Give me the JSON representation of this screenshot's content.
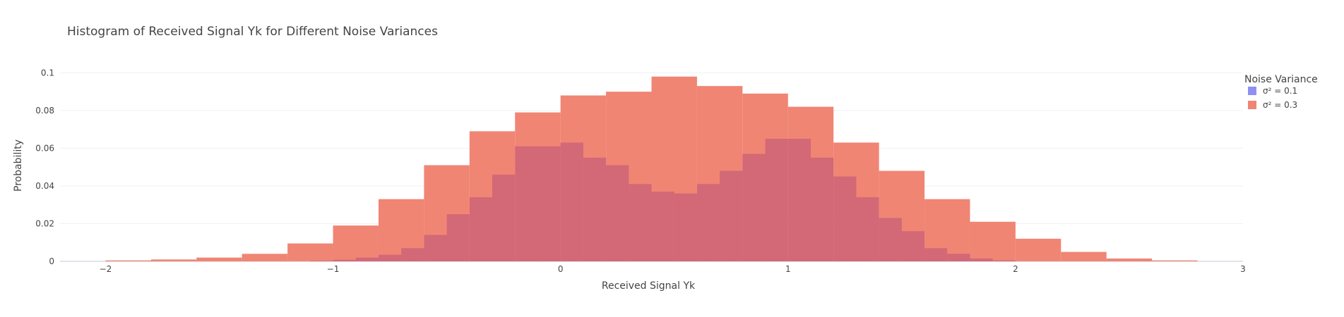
{
  "chart_data": {
    "type": "bar",
    "title": "Histogram of Received Signal Yk for Different Noise Variances",
    "xlabel": "Received Signal Yk",
    "ylabel": "Probability",
    "xlim": [
      -2.2,
      3.0
    ],
    "ylim": [
      0,
      0.105
    ],
    "x_ticks": [
      -2,
      -1,
      0,
      1,
      2,
      3
    ],
    "x_tick_labels": [
      "−2",
      "−1",
      "0",
      "1",
      "2",
      "3"
    ],
    "y_ticks": [
      0,
      0.02,
      0.04,
      0.06,
      0.08,
      0.1
    ],
    "y_tick_labels": [
      "0",
      "0.02",
      "0.04",
      "0.06",
      "0.08",
      "0.1"
    ],
    "grid": true,
    "legend": {
      "title": "Noise Variance",
      "position": "right",
      "entries": [
        "σ² = 0.1",
        "σ² = 0.3"
      ]
    },
    "series": [
      {
        "name": "σ² = 0.1",
        "color": "#d36877",
        "bin_width": 0.1,
        "bins": [
          {
            "x0": -1.1,
            "y": 0.0003
          },
          {
            "x0": -1.0,
            "y": 0.0008
          },
          {
            "x0": -0.9,
            "y": 0.002
          },
          {
            "x0": -0.8,
            "y": 0.0035
          },
          {
            "x0": -0.7,
            "y": 0.007
          },
          {
            "x0": -0.6,
            "y": 0.014
          },
          {
            "x0": -0.5,
            "y": 0.025
          },
          {
            "x0": -0.4,
            "y": 0.034
          },
          {
            "x0": -0.3,
            "y": 0.046
          },
          {
            "x0": -0.2,
            "y": 0.061
          },
          {
            "x0": -0.1,
            "y": 0.061
          },
          {
            "x0": 0.0,
            "y": 0.063
          },
          {
            "x0": 0.1,
            "y": 0.055
          },
          {
            "x0": 0.2,
            "y": 0.051
          },
          {
            "x0": 0.3,
            "y": 0.041
          },
          {
            "x0": 0.4,
            "y": 0.037
          },
          {
            "x0": 0.5,
            "y": 0.036
          },
          {
            "x0": 0.6,
            "y": 0.041
          },
          {
            "x0": 0.7,
            "y": 0.048
          },
          {
            "x0": 0.8,
            "y": 0.057
          },
          {
            "x0": 0.9,
            "y": 0.065
          },
          {
            "x0": 1.0,
            "y": 0.065
          },
          {
            "x0": 1.1,
            "y": 0.055
          },
          {
            "x0": 1.2,
            "y": 0.045
          },
          {
            "x0": 1.3,
            "y": 0.034
          },
          {
            "x0": 1.4,
            "y": 0.023
          },
          {
            "x0": 1.5,
            "y": 0.016
          },
          {
            "x0": 1.6,
            "y": 0.007
          },
          {
            "x0": 1.7,
            "y": 0.004
          },
          {
            "x0": 1.8,
            "y": 0.0015
          },
          {
            "x0": 1.9,
            "y": 0.0005
          }
        ]
      },
      {
        "name": "σ² = 0.3",
        "color": "#f08574",
        "bin_width": 0.2,
        "bins": [
          {
            "x0": -2.0,
            "y": 0.0005
          },
          {
            "x0": -1.8,
            "y": 0.001
          },
          {
            "x0": -1.6,
            "y": 0.002
          },
          {
            "x0": -1.4,
            "y": 0.004
          },
          {
            "x0": -1.2,
            "y": 0.0095
          },
          {
            "x0": -1.0,
            "y": 0.019
          },
          {
            "x0": -0.8,
            "y": 0.033
          },
          {
            "x0": -0.6,
            "y": 0.051
          },
          {
            "x0": -0.4,
            "y": 0.069
          },
          {
            "x0": -0.2,
            "y": 0.079
          },
          {
            "x0": 0.0,
            "y": 0.088
          },
          {
            "x0": 0.2,
            "y": 0.09
          },
          {
            "x0": 0.4,
            "y": 0.098
          },
          {
            "x0": 0.6,
            "y": 0.093
          },
          {
            "x0": 0.8,
            "y": 0.089
          },
          {
            "x0": 1.0,
            "y": 0.082
          },
          {
            "x0": 1.2,
            "y": 0.063
          },
          {
            "x0": 1.4,
            "y": 0.048
          },
          {
            "x0": 1.6,
            "y": 0.033
          },
          {
            "x0": 1.8,
            "y": 0.021
          },
          {
            "x0": 2.0,
            "y": 0.012
          },
          {
            "x0": 2.2,
            "y": 0.005
          },
          {
            "x0": 2.4,
            "y": 0.0015
          },
          {
            "x0": 2.6,
            "y": 0.0005
          }
        ]
      }
    ]
  }
}
